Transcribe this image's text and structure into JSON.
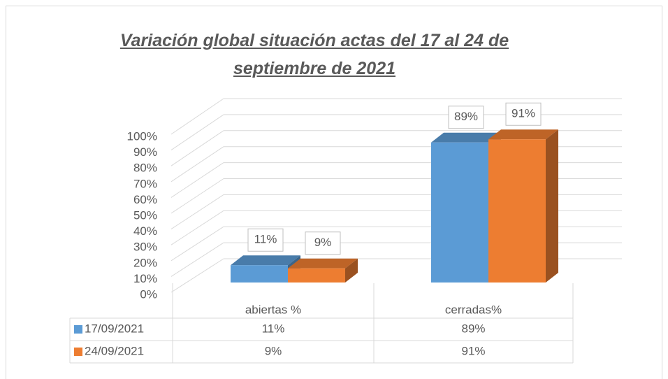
{
  "chart_data": {
    "type": "bar3d",
    "title": "Variación global situación actas del 17 al 24 de septiembre de 2021",
    "categories": [
      "abiertas %",
      "cerradas%"
    ],
    "series": [
      {
        "name": "17/09/2021",
        "color": "#5b9bd5",
        "values": [
          11,
          89
        ],
        "value_labels": [
          "11%",
          "89%"
        ]
      },
      {
        "name": "24/09/2021",
        "color": "#ed7d31",
        "values": [
          9,
          91
        ],
        "value_labels": [
          "9%",
          "91%"
        ]
      }
    ],
    "ylim": [
      0,
      100
    ],
    "yticks": [
      {
        "value": 0,
        "label": "0%"
      },
      {
        "value": 10,
        "label": "10%"
      },
      {
        "value": 20,
        "label": "20%"
      },
      {
        "value": 30,
        "label": "30%"
      },
      {
        "value": 40,
        "label": "40%"
      },
      {
        "value": 50,
        "label": "50%"
      },
      {
        "value": 60,
        "label": "60%"
      },
      {
        "value": 70,
        "label": "70%"
      },
      {
        "value": 80,
        "label": "80%"
      },
      {
        "value": 90,
        "label": "90%"
      },
      {
        "value": 100,
        "label": "100%"
      }
    ],
    "grid": true
  }
}
